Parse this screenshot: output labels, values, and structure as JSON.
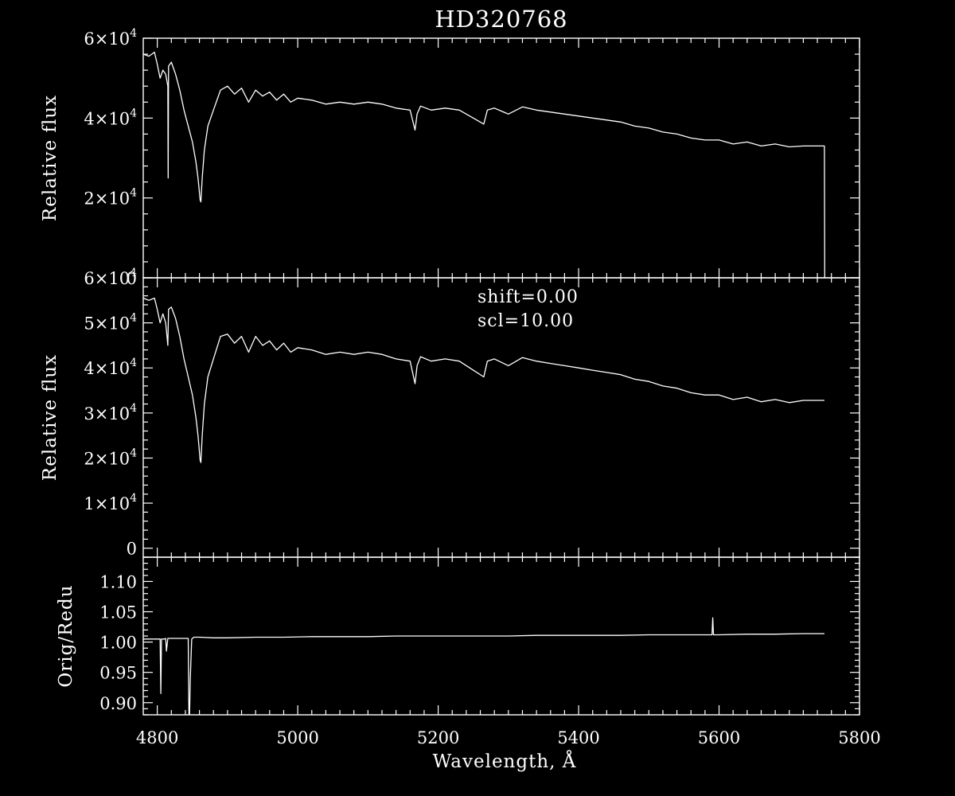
{
  "chart_data": {
    "type": "line",
    "title": "HD320768",
    "xlabel": "Wavelength, Å",
    "xlim": [
      4780,
      5800
    ],
    "x_ticks": [
      4800,
      5000,
      5200,
      5400,
      5600,
      5800
    ],
    "x_tick_labels": [
      "4800",
      "5000",
      "5200",
      "5400",
      "5600",
      "5800"
    ],
    "grid": false,
    "panels": [
      {
        "id": "top",
        "ylabel": "Relative flux",
        "ylim": [
          0,
          60000
        ],
        "y_ticks": [
          0,
          20000,
          40000,
          60000
        ],
        "y_tick_labels": [
          {
            "mant": "0",
            "exp": ""
          },
          {
            "mant": "2×10",
            "exp": "4"
          },
          {
            "mant": "4×10",
            "exp": "4"
          },
          {
            "mant": "6×10",
            "exp": "4"
          }
        ],
        "series": [
          {
            "x": [
              4780,
              4788,
              4796,
              4800,
              4804,
              4808,
              4812,
              4815,
              4815.5,
              4816,
              4820,
              4826,
              4832,
              4838,
              4844,
              4850,
              4855,
              4858,
              4861,
              4862,
              4864,
              4867,
              4872,
              4880,
              4890,
              4900,
              4910,
              4920,
              4930,
              4940,
              4950,
              4960,
              4970,
              4980,
              4990,
              5000,
              5020,
              5040,
              5060,
              5080,
              5100,
              5120,
              5140,
              5160,
              5167,
              5170,
              5175,
              5190,
              5210,
              5230,
              5250,
              5265,
              5270,
              5280,
              5300,
              5320,
              5340,
              5360,
              5380,
              5400,
              5420,
              5440,
              5460,
              5480,
              5500,
              5520,
              5540,
              5560,
              5580,
              5600,
              5620,
              5640,
              5660,
              5680,
              5700,
              5720,
              5740,
              5750,
              5750.5
            ],
            "y": [
              56000,
              55500,
              56500,
              53500,
              50000,
              52000,
              51000,
              48000,
              25000,
              53000,
              54000,
              51000,
              47000,
              42000,
              38000,
              34000,
              29000,
              25000,
              19500,
              19000,
              25000,
              32000,
              38000,
              42000,
              47000,
              48000,
              46000,
              47500,
              44000,
              47000,
              45500,
              46500,
              44500,
              46000,
              44000,
              45000,
              44500,
              43500,
              44000,
              43500,
              44000,
              43500,
              42500,
              42000,
              37000,
              41000,
              43000,
              42000,
              42500,
              42000,
              40000,
              38500,
              42000,
              42500,
              41000,
              42800,
              42000,
              41500,
              41000,
              40500,
              40000,
              39500,
              39000,
              38000,
              37500,
              36500,
              36000,
              35000,
              34500,
              34500,
              33500,
              34000,
              33000,
              33500,
              32800,
              33000,
              33000,
              33000,
              0
            ]
          }
        ]
      },
      {
        "id": "middle",
        "ylabel": "Relative flux",
        "ylim": [
          -2000,
          60000
        ],
        "y_ticks": [
          0,
          10000,
          20000,
          30000,
          40000,
          50000,
          60000
        ],
        "y_tick_labels": [
          {
            "mant": "0",
            "exp": ""
          },
          {
            "mant": "1×10",
            "exp": "4"
          },
          {
            "mant": "2×10",
            "exp": "4"
          },
          {
            "mant": "3×10",
            "exp": "4"
          },
          {
            "mant": "4×10",
            "exp": "4"
          },
          {
            "mant": "5×10",
            "exp": "4"
          },
          {
            "mant": "6×10",
            "exp": "4"
          }
        ],
        "annotations": [
          "shift=0.00",
          "scl=10.00"
        ],
        "series": [
          {
            "x": [
              4780,
              4788,
              4796,
              4800,
              4804,
              4808,
              4812,
              4815,
              4816,
              4820,
              4826,
              4832,
              4838,
              4844,
              4850,
              4855,
              4858,
              4861,
              4862,
              4864,
              4867,
              4872,
              4880,
              4890,
              4900,
              4910,
              4920,
              4930,
              4940,
              4950,
              4960,
              4970,
              4980,
              4990,
              5000,
              5020,
              5040,
              5060,
              5080,
              5100,
              5120,
              5140,
              5160,
              5167,
              5170,
              5175,
              5190,
              5210,
              5230,
              5250,
              5265,
              5270,
              5280,
              5300,
              5320,
              5340,
              5360,
              5380,
              5400,
              5420,
              5440,
              5460,
              5480,
              5500,
              5520,
              5540,
              5560,
              5580,
              5600,
              5620,
              5640,
              5660,
              5680,
              5700,
              5720,
              5740,
              5750
            ],
            "y": [
              55500,
              55000,
              55500,
              53000,
              50000,
              52000,
              50000,
              45000,
              53000,
              53500,
              51000,
              47000,
              42000,
              38000,
              34000,
              29000,
              25000,
              19500,
              19000,
              25000,
              32000,
              38000,
              42000,
              47000,
              47500,
              45500,
              47000,
              43500,
              47000,
              45000,
              46000,
              44000,
              45500,
              43500,
              44500,
              44000,
              43000,
              43500,
              43000,
              43500,
              43000,
              42000,
              41500,
              36500,
              40500,
              42500,
              41500,
              42000,
              41500,
              39500,
              38000,
              41500,
              42000,
              40500,
              42300,
              41500,
              41000,
              40500,
              40000,
              39500,
              39000,
              38500,
              37500,
              37000,
              36000,
              35500,
              34500,
              34000,
              34000,
              33000,
              33500,
              32500,
              33000,
              32300,
              32800,
              32800,
              32800
            ]
          }
        ]
      },
      {
        "id": "bottom",
        "ylabel": "Orig/Redu",
        "ylim": [
          0.88,
          1.14
        ],
        "y_ticks": [
          0.9,
          0.95,
          1.0,
          1.05,
          1.1
        ],
        "y_tick_labels": [
          {
            "mant": "0.90",
            "exp": ""
          },
          {
            "mant": "0.95",
            "exp": ""
          },
          {
            "mant": "1.00",
            "exp": ""
          },
          {
            "mant": "1.05",
            "exp": ""
          },
          {
            "mant": "1.10",
            "exp": ""
          }
        ],
        "series": [
          {
            "x": [
              4780,
              4800,
              4804,
              4805,
              4806,
              4810,
              4812,
              4813,
              4815,
              4820,
              4830,
              4840,
              4844,
              4845,
              4846,
              4847,
              4849,
              4852,
              4860,
              4880,
              4900,
              4940,
              4980,
              5020,
              5060,
              5100,
              5140,
              5180,
              5220,
              5260,
              5300,
              5340,
              5380,
              5420,
              5460,
              5500,
              5540,
              5580,
              5590,
              5591,
              5592,
              5600,
              5640,
              5680,
              5720,
              5750
            ],
            "y": [
              1.005,
              1.005,
              1.005,
              0.915,
              1.005,
              1.005,
              1.006,
              0.985,
              1.006,
              1.006,
              1.006,
              1.006,
              1.006,
              0.88,
              0.88,
              0.94,
              1.005,
              1.008,
              1.008,
              1.007,
              1.007,
              1.008,
              1.008,
              1.009,
              1.009,
              1.009,
              1.01,
              1.01,
              1.01,
              1.01,
              1.01,
              1.011,
              1.011,
              1.011,
              1.011,
              1.012,
              1.012,
              1.012,
              1.012,
              1.04,
              1.012,
              1.012,
              1.013,
              1.013,
              1.014,
              1.014
            ]
          }
        ]
      }
    ]
  }
}
